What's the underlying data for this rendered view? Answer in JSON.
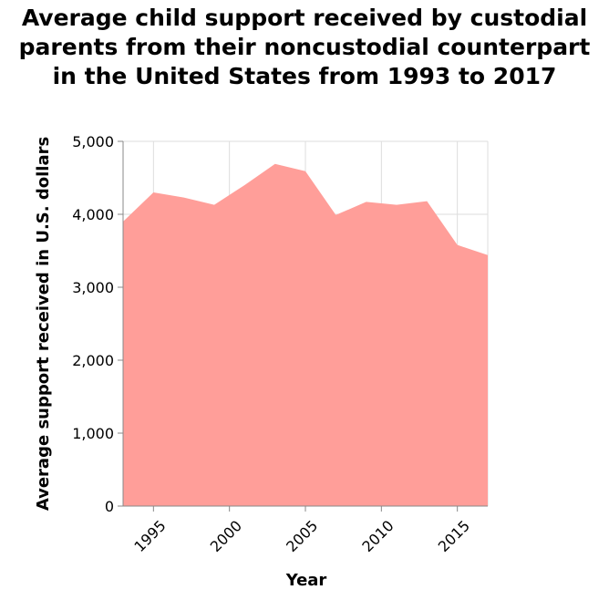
{
  "chart_data": {
    "type": "area",
    "title_lines": [
      "Average child support received by custodial",
      "parents from their noncustodial counterpart",
      "in the United States from 1993 to 2017"
    ],
    "xlabel": "Year",
    "ylabel": "Average support received in U.S. dollars",
    "x": [
      1993,
      1995,
      1997,
      1999,
      2001,
      2003,
      2005,
      2007,
      2009,
      2011,
      2013,
      2015,
      2017
    ],
    "values": [
      3900,
      4300,
      4230,
      4130,
      4400,
      4690,
      4590,
      3990,
      4170,
      4130,
      4180,
      3580,
      3440
    ],
    "xlim": [
      1993,
      2017
    ],
    "ylim": [
      0,
      5000
    ],
    "x_ticks": [
      1995,
      2000,
      2005,
      2010,
      2015
    ],
    "x_tick_labels": [
      "1995",
      "2000",
      "2005",
      "2010",
      "2015"
    ],
    "y_ticks": [
      0,
      1000,
      2000,
      3000,
      4000,
      5000
    ],
    "y_tick_labels": [
      "0",
      "1,000",
      "2,000",
      "3,000",
      "4,000",
      "5,000"
    ],
    "grid": true,
    "fill_color": "#ff9e99",
    "grid_color": "#dddddd",
    "axis_color": "#888888"
  }
}
